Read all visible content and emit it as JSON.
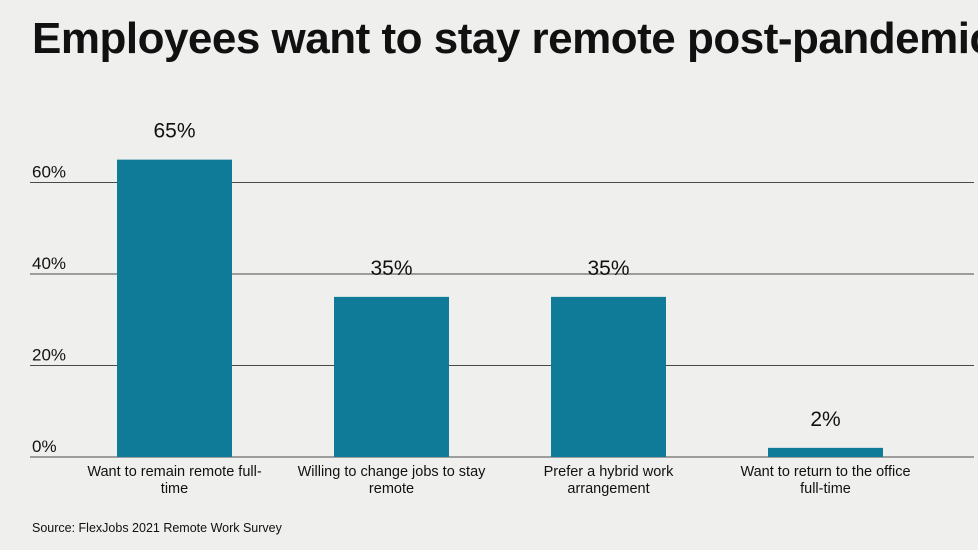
{
  "chart_data": {
    "type": "bar",
    "title": "Employees want to stay remote post-pandemic",
    "categories": [
      [
        "Want to remain remote full-",
        "time"
      ],
      [
        "Willing to change jobs to stay",
        "remote"
      ],
      [
        "Prefer a hybrid work",
        "arrangement"
      ],
      [
        "Want to return to the office",
        "full-time"
      ]
    ],
    "values": [
      65,
      35,
      35,
      2
    ],
    "value_labels": [
      "65%",
      "35%",
      "35%",
      "2%"
    ],
    "yticks": [
      0,
      20,
      40,
      60
    ],
    "ytick_labels": [
      "0%",
      "20%",
      "40%",
      "60%"
    ],
    "ylim": [
      0,
      60
    ],
    "xlabel": "",
    "ylabel": "",
    "grid": true,
    "bar_color": "#0f7b99",
    "grid_color": "#4a4a4a"
  },
  "source": "Source: FlexJobs 2021 Remote Work Survey"
}
